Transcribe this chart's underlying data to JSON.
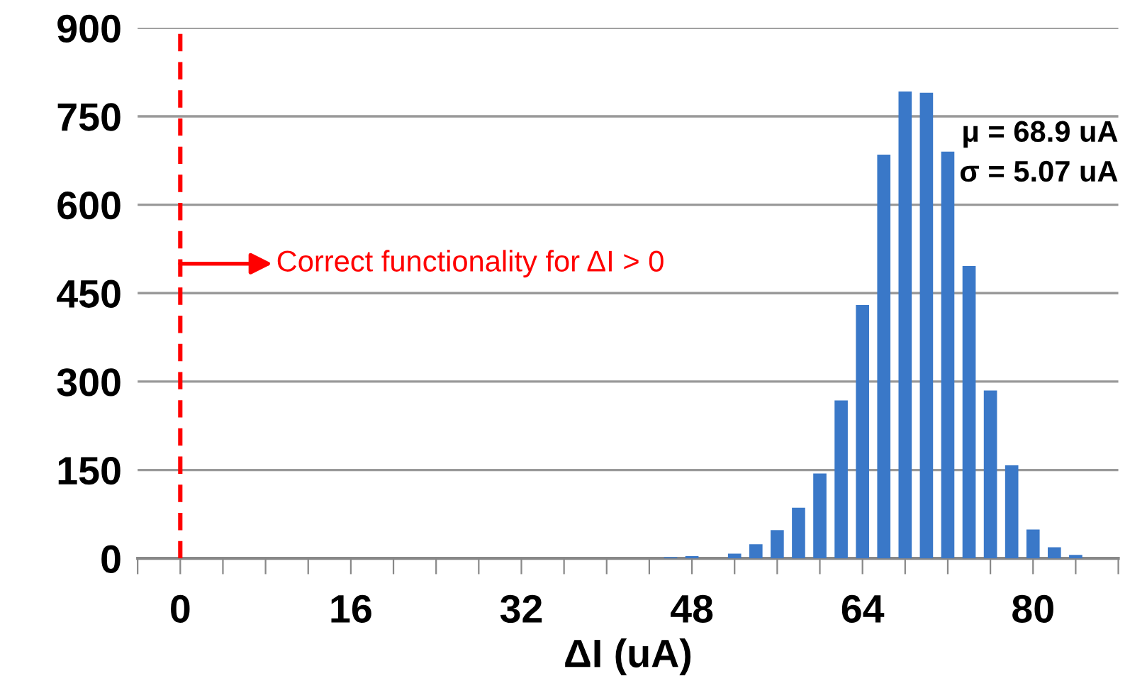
{
  "chart_data": {
    "type": "histogram",
    "xlabel": "ΔI (uA)",
    "bins": [
      45,
      47,
      49,
      51,
      53,
      55,
      57,
      59,
      61,
      63,
      65,
      67,
      69,
      71,
      73,
      75,
      77,
      79,
      81,
      83,
      85
    ],
    "values": [
      2,
      4,
      0,
      8,
      24,
      48,
      86,
      144,
      268,
      430,
      685,
      792,
      790,
      690,
      496,
      285,
      158,
      49,
      19,
      6
    ],
    "color": "#3a78c8",
    "xlim": [
      -4,
      88
    ],
    "xticks": [
      {
        "value": -4,
        "label": null
      },
      0,
      {
        "value": 4,
        "label": null
      },
      {
        "value": 8,
        "label": null
      },
      {
        "value": 12,
        "label": null
      },
      16,
      {
        "value": 20,
        "label": null
      },
      {
        "value": 24,
        "label": null
      },
      {
        "value": 28,
        "label": null
      },
      32,
      {
        "value": 36,
        "label": null
      },
      {
        "value": 40,
        "label": null
      },
      {
        "value": 44,
        "label": null
      },
      48,
      {
        "value": 52,
        "label": null
      },
      {
        "value": 56,
        "label": null
      },
      {
        "value": 60,
        "label": null
      },
      64,
      {
        "value": 68,
        "label": null
      },
      {
        "value": 72,
        "label": null
      },
      {
        "value": 76,
        "label": null
      },
      80,
      {
        "value": 84,
        "label": null
      },
      {
        "value": 88,
        "label": null
      }
    ],
    "ylim": [
      0,
      900
    ],
    "yticks": [
      0,
      150,
      300,
      450,
      600,
      750,
      900
    ],
    "grid": "y",
    "ref_lines": [
      {
        "axis": "x",
        "value": 0,
        "color": "#ff0000",
        "line_style": "dashed"
      }
    ],
    "annotations": [
      {
        "text": "Correct functionality for ΔI > 0",
        "x": 0,
        "y": 500
      },
      "μ = 68.9 uA",
      "σ = 5.07 uA"
    ]
  }
}
